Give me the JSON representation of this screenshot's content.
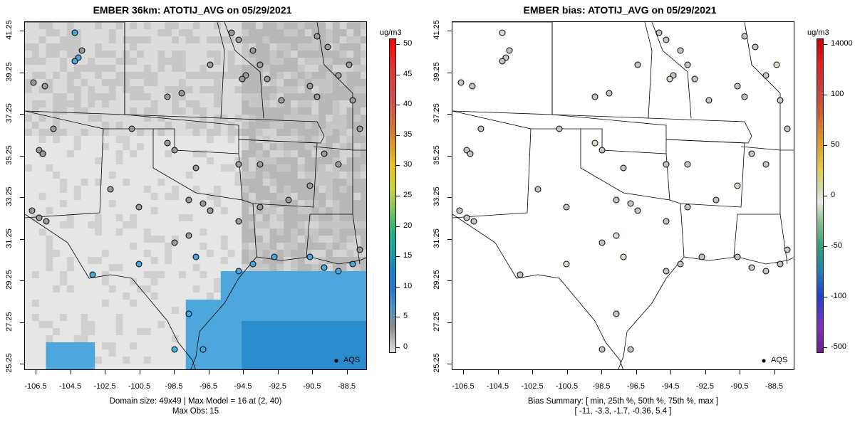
{
  "left": {
    "title": "EMBER 36km: ATOTIJ_AVG on 05/29/2021",
    "colorbar_unit": "ug/m3",
    "colorbar_labels": [
      "50",
      "45",
      "40",
      "35",
      "30",
      "25",
      "20",
      "15",
      "10",
      "5",
      "0"
    ],
    "legend_label": "AQS",
    "footer_line1": "Domain size: 49x49 | Max Model = 16 at (2, 40)",
    "footer_line2": "Max Obs: 15"
  },
  "right": {
    "title": "EMBER bias: ATOTIJ_AVG on 05/29/2021",
    "colorbar_unit": "ug/m3",
    "colorbar_labels": [
      "14000",
      "100",
      "50",
      "0",
      "-50",
      "-100",
      "-500"
    ],
    "legend_label": "AQS",
    "footer_line1": "Bias Summary: [ min, 25th %, 50th %, 75th %, max ]",
    "footer_line2": "[ -11,   -3.3,   -1.7,   -0.36,   5.4 ]"
  },
  "axes": {
    "x_ticks": [
      "-106.5",
      "-104.5",
      "-102.5",
      "-100.5",
      "-98.5",
      "-96.5",
      "-94.5",
      "-92.5",
      "-90.5",
      "-88.5"
    ],
    "y_ticks": [
      "41.25",
      "39.25",
      "37.25",
      "35.25",
      "33.25",
      "31.25",
      "29.25",
      "27.25",
      "25.25"
    ]
  },
  "colors": {
    "land_light": "#e6e6e6",
    "land_mid": "#c8c8c8",
    "ocean_blue": "#4da6dc",
    "deep_blue": "#2a8ccc",
    "site_grey": "#c4c4c4"
  }
}
